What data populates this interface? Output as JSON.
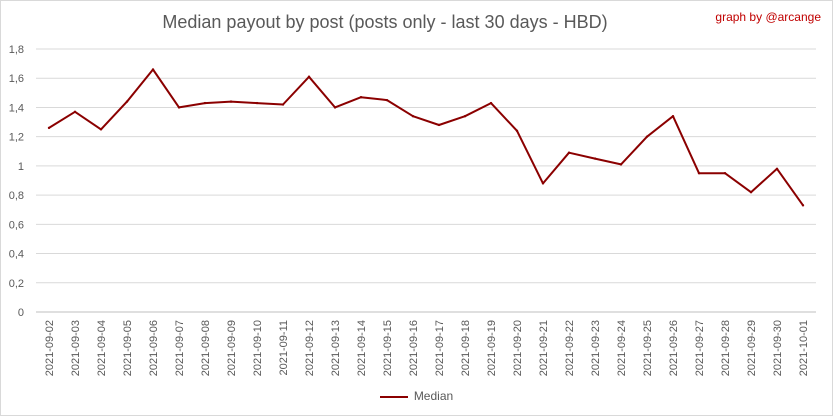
{
  "credit": "graph by @arcange",
  "chart_data": {
    "type": "line",
    "title": "Median payout by post (posts only - last 30 days - HBD)",
    "xlabel": "",
    "ylabel": "",
    "ylim": [
      0,
      1.8
    ],
    "ytick_step": 0.2,
    "y_tick_labels": [
      "0",
      "0,2",
      "0,4",
      "0,6",
      "0,8",
      "1",
      "1,2",
      "1,4",
      "1,6",
      "1,8"
    ],
    "grid": true,
    "legend": "bottom",
    "x": [
      "2021-09-02",
      "2021-09-03",
      "2021-09-04",
      "2021-09-05",
      "2021-09-06",
      "2021-09-07",
      "2021-09-08",
      "2021-09-09",
      "2021-09-10",
      "2021-09-11",
      "2021-09-12",
      "2021-09-13",
      "2021-09-14",
      "2021-09-15",
      "2021-09-16",
      "2021-09-17",
      "2021-09-18",
      "2021-09-19",
      "2021-09-20",
      "2021-09-21",
      "2021-09-22",
      "2021-09-23",
      "2021-09-24",
      "2021-09-25",
      "2021-09-26",
      "2021-09-27",
      "2021-09-28",
      "2021-09-29",
      "2021-09-30",
      "2021-10-01"
    ],
    "series": [
      {
        "name": "Median",
        "color": "#8b0000",
        "values": [
          1.26,
          1.37,
          1.25,
          1.44,
          1.66,
          1.4,
          1.43,
          1.44,
          1.43,
          1.42,
          1.61,
          1.4,
          1.47,
          1.45,
          1.34,
          1.28,
          1.34,
          1.43,
          1.24,
          0.88,
          1.09,
          1.05,
          1.01,
          1.2,
          1.34,
          0.95,
          0.95,
          0.82,
          0.98,
          0.73
        ]
      }
    ]
  }
}
